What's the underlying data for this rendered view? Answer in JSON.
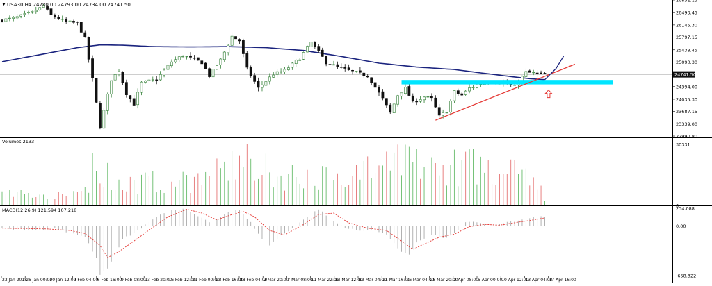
{
  "window": {
    "menu_icon": "triangle-down-icon",
    "title": "USA30,H4  24780.00 24793.00 24734.00 24741.50"
  },
  "chart_data": {
    "type": "candlestick",
    "main": {
      "price_levels": [
        "26852.15",
        "26493.45",
        "26145.30",
        "25797.15",
        "25438.45",
        "25090.30",
        "24741.50",
        "24394.00",
        "24035.30",
        "23687.15",
        "23339.00",
        "22990.80"
      ],
      "current_price": "24741.50",
      "ylim": [
        22990.8,
        26852.15
      ],
      "grid": false
    },
    "volumes": {
      "label": "Volumes 2133",
      "levels": [
        "30331",
        "0"
      ],
      "ylim": [
        0,
        30331
      ]
    },
    "macd": {
      "label": "MACD(12,26,9) 121.594 107.218",
      "levels": [
        "234.088",
        "0.00",
        "-658.322"
      ],
      "ylim": [
        -658.322,
        234.088
      ]
    },
    "x_labels": [
      "23 Jan 2018",
      "26 Jan 00:00",
      "30 Jan 12:00",
      "2 Feb 04:00",
      "6 Feb 16:00",
      "9 Feb 08:00",
      "13 Feb 20:00",
      "16 Feb 12:00",
      "21 Feb 00:00",
      "23 Feb 16:00",
      "28 Feb 04:00",
      "2 Mar 20:00",
      "7 Mar 08:00",
      "11 Mar 22:01",
      "14 Mar 12:00",
      "19 Mar 04:00",
      "21 Mar 16:00",
      "26 Mar 04:00",
      "28 Mar 20:00",
      "3 Apr 08:00",
      "6 Apr 00:00",
      "10 Apr 12:00",
      "13 Apr 04:00",
      "17 Apr 16:00"
    ],
    "candle_count": 145,
    "price_path": [
      [
        0,
        26270
      ],
      [
        4,
        26330
      ],
      [
        9,
        26500
      ],
      [
        12,
        26680
      ],
      [
        14,
        26420
      ],
      [
        18,
        26230
      ],
      [
        21,
        26200
      ],
      [
        23,
        25750
      ],
      [
        25,
        24600
      ],
      [
        27,
        23250
      ],
      [
        30,
        24600
      ],
      [
        32,
        24850
      ],
      [
        34,
        24200
      ],
      [
        36,
        23900
      ],
      [
        38,
        24500
      ],
      [
        42,
        24600
      ],
      [
        46,
        25100
      ],
      [
        49,
        25280
      ],
      [
        54,
        25080
      ],
      [
        56,
        24700
      ],
      [
        59,
        25150
      ],
      [
        62,
        25820
      ],
      [
        64,
        25700
      ],
      [
        66,
        24900
      ],
      [
        69,
        24350
      ],
      [
        73,
        24750
      ],
      [
        76,
        24850
      ],
      [
        80,
        25200
      ],
      [
        83,
        25650
      ],
      [
        85,
        25380
      ],
      [
        87,
        25080
      ],
      [
        90,
        24950
      ],
      [
        93,
        24850
      ],
      [
        98,
        24700
      ],
      [
        102,
        24050
      ],
      [
        104,
        23650
      ],
      [
        106,
        24150
      ],
      [
        108,
        24350
      ],
      [
        110,
        23950
      ],
      [
        113,
        24100
      ],
      [
        115,
        24050
      ],
      [
        117,
        23550
      ],
      [
        119,
        23700
      ],
      [
        121,
        24250
      ],
      [
        123,
        24150
      ],
      [
        125,
        24350
      ],
      [
        130,
        24550
      ],
      [
        134,
        24500
      ],
      [
        137,
        24400
      ],
      [
        140,
        24800
      ],
      [
        142,
        24780
      ],
      [
        144,
        24741.5
      ]
    ],
    "volume_path": [
      [
        0,
        7000
      ],
      [
        23,
        9000
      ],
      [
        24,
        24000
      ],
      [
        26,
        28000
      ],
      [
        30,
        15000
      ],
      [
        40,
        16000
      ],
      [
        55,
        18000
      ],
      [
        60,
        26000
      ],
      [
        66,
        30331
      ],
      [
        72,
        20000
      ],
      [
        85,
        22000
      ],
      [
        100,
        25000
      ],
      [
        104,
        29000
      ],
      [
        115,
        26000
      ],
      [
        125,
        27000
      ],
      [
        135,
        24000
      ],
      [
        142,
        21000
      ],
      [
        144,
        2133
      ]
    ],
    "macd_path": [
      [
        0,
        -40
      ],
      [
        10,
        -50
      ],
      [
        14,
        -30
      ],
      [
        18,
        -90
      ],
      [
        22,
        -150
      ],
      [
        25,
        -420
      ],
      [
        26,
        -640
      ],
      [
        28,
        -560
      ],
      [
        32,
        -180
      ],
      [
        36,
        -60
      ],
      [
        40,
        80
      ],
      [
        44,
        210
      ],
      [
        48,
        230
      ],
      [
        52,
        120
      ],
      [
        56,
        40
      ],
      [
        60,
        180
      ],
      [
        63,
        210
      ],
      [
        66,
        50
      ],
      [
        69,
        -180
      ],
      [
        71,
        -250
      ],
      [
        74,
        -120
      ],
      [
        78,
        0
      ],
      [
        82,
        150
      ],
      [
        84,
        220
      ],
      [
        87,
        100
      ],
      [
        92,
        -40
      ],
      [
        98,
        -60
      ],
      [
        102,
        -120
      ],
      [
        106,
        -340
      ],
      [
        108,
        -380
      ],
      [
        110,
        -220
      ],
      [
        114,
        -120
      ],
      [
        118,
        -160
      ],
      [
        120,
        -90
      ],
      [
        123,
        60
      ],
      [
        127,
        40
      ],
      [
        130,
        -10
      ],
      [
        134,
        60
      ],
      [
        138,
        80
      ],
      [
        141,
        110
      ],
      [
        144,
        121.594
      ]
    ],
    "signal_path": [
      [
        0,
        -30
      ],
      [
        12,
        -40
      ],
      [
        18,
        -60
      ],
      [
        22,
        -100
      ],
      [
        26,
        -260
      ],
      [
        28,
        -420
      ],
      [
        31,
        -340
      ],
      [
        35,
        -200
      ],
      [
        40,
        -20
      ],
      [
        44,
        120
      ],
      [
        49,
        220
      ],
      [
        53,
        170
      ],
      [
        57,
        80
      ],
      [
        61,
        150
      ],
      [
        64,
        190
      ],
      [
        67,
        120
      ],
      [
        71,
        -60
      ],
      [
        75,
        -120
      ],
      [
        80,
        20
      ],
      [
        84,
        150
      ],
      [
        88,
        170
      ],
      [
        92,
        40
      ],
      [
        97,
        -30
      ],
      [
        102,
        -60
      ],
      [
        106,
        -200
      ],
      [
        109,
        -310
      ],
      [
        112,
        -240
      ],
      [
        116,
        -150
      ],
      [
        120,
        -110
      ],
      [
        124,
        -10
      ],
      [
        128,
        20
      ],
      [
        132,
        10
      ],
      [
        137,
        50
      ],
      [
        141,
        80
      ],
      [
        144,
        107.218
      ]
    ],
    "moving_average": [
      [
        0,
        25100
      ],
      [
        10,
        25300
      ],
      [
        20,
        25500
      ],
      [
        26,
        25580
      ],
      [
        32,
        25570
      ],
      [
        40,
        25530
      ],
      [
        50,
        25520
      ],
      [
        60,
        25530
      ],
      [
        70,
        25500
      ],
      [
        80,
        25420
      ],
      [
        90,
        25250
      ],
      [
        100,
        25060
      ],
      [
        110,
        24950
      ],
      [
        120,
        24880
      ],
      [
        128,
        24770
      ],
      [
        135,
        24680
      ],
      [
        140,
        24620
      ],
      [
        144,
        24590
      ]
    ],
    "annotations": {
      "support_zone": {
        "price": 24520,
        "from": 106,
        "to": 162,
        "color": "#00E5FF"
      },
      "trend_line": {
        "from": [
          115,
          23440
        ],
        "to": [
          152,
          25030
        ],
        "color": "#E53935"
      },
      "projection": [
        [
          144,
          24590
        ],
        [
          147,
          24910
        ],
        [
          149,
          25260
        ]
      ],
      "projection_color": "#1A237E",
      "arrow_up": {
        "index": 145,
        "price": 24180,
        "color": "#E53935",
        "icon": "arrow-up-outline-icon"
      }
    },
    "colors": {
      "bull_candle": "#2E7D32",
      "bear_candle": "#111111",
      "moving_average": "#1A237E",
      "volume_up": "#66BB6A",
      "volume_down": "#E57373",
      "macd_hist": "#9E9E9E",
      "macd_signal": "#E53935",
      "price_badge": "#111111",
      "separator": "#000000"
    }
  }
}
